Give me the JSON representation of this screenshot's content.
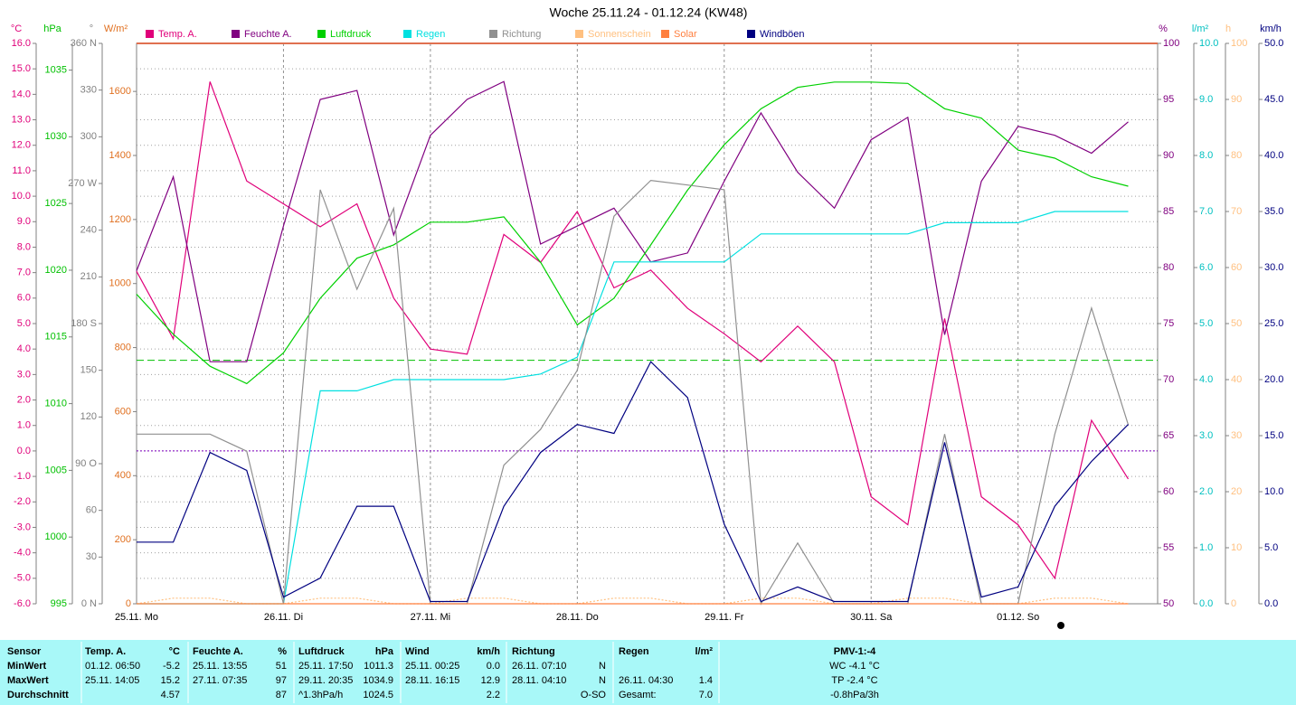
{
  "chart_data": {
    "type": "line",
    "title": "Woche 25.11.24 - 01.12.24 (KW48)",
    "x": [
      0,
      0.25,
      0.5,
      0.75,
      1,
      1.25,
      1.5,
      1.75,
      2,
      2.25,
      2.5,
      2.75,
      3,
      3.25,
      3.5,
      3.75,
      4,
      4.25,
      4.5,
      4.75,
      5,
      5.25,
      5.5,
      5.75,
      6,
      6.25,
      6.5,
      6.75
    ],
    "xlim": [
      0,
      6.95
    ],
    "xticks": [
      {
        "value": 0,
        "label": "25.11. Mo"
      },
      {
        "value": 1,
        "label": "26.11. Di"
      },
      {
        "value": 2,
        "label": "27.11. Mi"
      },
      {
        "value": 3,
        "label": "28.11. Do"
      },
      {
        "value": 4,
        "label": "29.11. Fr"
      },
      {
        "value": 5,
        "label": "30.11. Sa"
      },
      {
        "value": 6,
        "label": "01.12. So"
      }
    ],
    "grid": true,
    "axes": [
      {
        "unit": "°C",
        "color": "#e0007a",
        "lim": [
          -6,
          16
        ],
        "ticks": [
          {
            "value": 16,
            "label": "16.0"
          },
          {
            "value": 15,
            "label": "15.0"
          },
          {
            "value": 14,
            "label": "14.0"
          },
          {
            "value": 13,
            "label": "13.0"
          },
          {
            "value": 12,
            "label": "12.0"
          },
          {
            "value": 11,
            "label": "11.0"
          },
          {
            "value": 10,
            "label": "10.0"
          },
          {
            "value": 9,
            "label": "9.0"
          },
          {
            "value": 8,
            "label": "8.0"
          },
          {
            "value": 7,
            "label": "7.0"
          },
          {
            "value": 6,
            "label": "6.0"
          },
          {
            "value": 5,
            "label": "5.0"
          },
          {
            "value": 4,
            "label": "4.0"
          },
          {
            "value": 3,
            "label": "3.0"
          },
          {
            "value": 2,
            "label": "2.0"
          },
          {
            "value": 1,
            "label": "1.0"
          },
          {
            "value": 0,
            "label": "0.0"
          },
          {
            "value": -1,
            "label": "-1.0"
          },
          {
            "value": -2,
            "label": "-2.0"
          },
          {
            "value": -3,
            "label": "-3.0"
          },
          {
            "value": -4,
            "label": "-4.0"
          },
          {
            "value": -5,
            "label": "-5.0"
          },
          {
            "value": -6,
            "label": "-6.0"
          }
        ]
      },
      {
        "unit": "hPa",
        "color": "#00c000",
        "lim": [
          995,
          1037
        ],
        "ticks": [
          995,
          1000,
          1005,
          1010,
          1015,
          1020,
          1025,
          1030,
          1035
        ]
      },
      {
        "unit": "°",
        "color": "#808080",
        "lim": [
          0,
          360
        ],
        "ticks": [
          {
            "value": 0,
            "label": "0 N"
          },
          30,
          60,
          {
            "value": 90,
            "label": "90 O"
          },
          120,
          150,
          {
            "value": 180,
            "label": "180 S"
          },
          210,
          240,
          {
            "value": 270,
            "label": "270 W"
          },
          300,
          330,
          {
            "value": 360,
            "label": "360 N"
          }
        ]
      },
      {
        "unit": "W/m²",
        "color": "#e07020",
        "lim": [
          0,
          1750
        ],
        "ticks": [
          0,
          200,
          400,
          600,
          800,
          1000,
          1200,
          1400,
          1600
        ]
      },
      {
        "unit": "%",
        "color": "#800080",
        "lim": [
          50,
          100
        ],
        "ticks": [
          50,
          55,
          60,
          65,
          70,
          75,
          80,
          85,
          90,
          95,
          100
        ]
      },
      {
        "unit": "l/m²",
        "color": "#00c0c0",
        "lim": [
          0,
          10
        ],
        "ticks": [
          {
            "value": 0,
            "label": "0.0"
          },
          {
            "value": 1,
            "label": "1.0"
          },
          {
            "value": 2,
            "label": "2.0"
          },
          {
            "value": 3,
            "label": "3.0"
          },
          {
            "value": 4,
            "label": "4.0"
          },
          {
            "value": 5,
            "label": "5.0"
          },
          {
            "value": 6,
            "label": "6.0"
          },
          {
            "value": 7,
            "label": "7.0"
          },
          {
            "value": 8,
            "label": "8.0"
          },
          {
            "value": 9,
            "label": "9.0"
          },
          {
            "value": 10,
            "label": "10.0"
          }
        ]
      },
      {
        "unit": "h",
        "color": "#ffc080",
        "lim": [
          0,
          100
        ],
        "ticks": [
          0,
          10,
          20,
          30,
          40,
          50,
          60,
          70,
          80,
          90,
          100
        ]
      },
      {
        "unit": "km/h",
        "color": "#000080",
        "lim": [
          0,
          50
        ],
        "ticks": [
          {
            "value": 0,
            "label": "0.0"
          },
          {
            "value": 5,
            "label": "5.0"
          },
          {
            "value": 10,
            "label": "10.0"
          },
          {
            "value": 15,
            "label": "15.0"
          },
          {
            "value": 20,
            "label": "20.0"
          },
          {
            "value": 25,
            "label": "25.0"
          },
          {
            "value": 30,
            "label": "30.0"
          },
          {
            "value": 35,
            "label": "35.0"
          },
          {
            "value": 40,
            "label": "40.0"
          },
          {
            "value": 45,
            "label": "45.0"
          },
          {
            "value": 50,
            "label": "50.0"
          }
        ]
      }
    ],
    "hlines": [
      {
        "axis": 1,
        "value": 1013.25,
        "color": "#00c000"
      },
      {
        "axis": 0,
        "value": 0,
        "color": "#8000c0"
      }
    ],
    "series": [
      {
        "name": "Temp. A.",
        "color": "#e0007a",
        "axis": 0,
        "values": [
          7.05,
          4.4,
          14.5,
          10.6,
          9.7,
          8.8,
          9.7,
          6,
          4,
          3.8,
          8.5,
          7.4,
          9.4,
          6.4,
          7.1,
          5.6,
          4.6,
          3.5,
          4.9,
          3.5,
          -1.8,
          -2.9,
          5.2,
          -1.8,
          -2.9,
          -5,
          1.2,
          -1.1
        ]
      },
      {
        "name": "Feuchte A.",
        "color": "#800080",
        "axis": 4,
        "values": [
          79.7,
          88.1,
          71.6,
          71.6,
          83.7,
          95,
          95.8,
          82.9,
          91.8,
          95,
          96.6,
          82.1,
          83.7,
          85.3,
          80.5,
          81.3,
          87.7,
          93.8,
          88.5,
          85.3,
          91.4,
          93.4,
          74,
          87.7,
          92.6,
          91.8,
          90.2,
          93
        ]
      },
      {
        "name": "Luftdruck",
        "color": "#00d000",
        "axis": 1,
        "values": [
          1018.2,
          1015.2,
          1012.8,
          1011.5,
          1013.8,
          1017.9,
          1020.9,
          1021.9,
          1023.6,
          1023.6,
          1024,
          1020.6,
          1015.9,
          1017.9,
          1021.9,
          1026,
          1029.4,
          1032.1,
          1033.7,
          1034.1,
          1034.1,
          1034,
          1032.1,
          1031.4,
          1029,
          1028.4,
          1027,
          1026.3
        ]
      },
      {
        "name": "Regen",
        "color": "#00e0e0",
        "axis": 5,
        "values": [
          0,
          0,
          0,
          0,
          0,
          3.8,
          3.8,
          4,
          4,
          4,
          4,
          4.1,
          4.4,
          6.1,
          6.1,
          6.1,
          6.1,
          6.6,
          6.6,
          6.6,
          6.6,
          6.6,
          6.8,
          6.8,
          6.8,
          7,
          7,
          7
        ]
      },
      {
        "name": "Richtung",
        "color": "#909090",
        "axis": 2,
        "values": [
          109,
          109,
          109,
          98,
          0,
          266,
          202,
          254,
          0,
          0,
          89,
          112,
          150,
          249,
          272,
          269,
          266,
          0,
          39,
          0,
          0,
          0,
          109,
          0,
          0,
          109,
          190,
          115
        ]
      },
      {
        "name": "Sonnenschein",
        "color": "#ffc080",
        "axis": 6,
        "values": [
          0,
          1,
          1,
          0,
          0,
          1,
          1,
          0,
          0,
          1,
          1,
          0,
          0,
          1,
          1,
          0,
          0,
          1,
          1,
          0,
          0,
          1,
          1,
          0,
          0,
          1,
          1,
          0
        ]
      },
      {
        "name": "Solar",
        "color": "#ff8040",
        "axis": 3,
        "values": [
          0,
          0,
          0,
          0,
          0,
          0,
          0,
          0,
          0,
          0,
          0,
          0,
          0,
          0,
          0,
          0,
          0,
          0,
          0,
          0,
          0,
          0,
          0,
          0,
          0,
          0,
          0,
          0
        ]
      },
      {
        "name": "Windböen",
        "color": "#000080",
        "axis": 7,
        "values": [
          5.5,
          5.5,
          13.5,
          11.9,
          0.6,
          2.3,
          8.7,
          8.7,
          0.2,
          0.2,
          8.7,
          13.5,
          16,
          15.2,
          21.6,
          18.4,
          7.1,
          0.2,
          1.5,
          0.2,
          0.2,
          0.2,
          14.4,
          0.6,
          1.5,
          8.7,
          12.7,
          16
        ]
      }
    ]
  },
  "table": {
    "rows": [
      {
        "sensor": "Sensor",
        "temp_time": "Temp. A.",
        "temp_val": "°C",
        "hum_time": "Feuchte A.",
        "hum_val": "%",
        "pres_time": "Luftdruck",
        "pres_val": "hPa",
        "wind_time": "Wind",
        "wind_val": "km/h",
        "dir_time": "Richtung",
        "rain_time": "Regen",
        "rain_val": "l/m²",
        "pmv": "PMV-1:-4"
      },
      {
        "sensor": "MinWert",
        "temp_time": "01.12.  06:50",
        "temp_val": "-5.2",
        "hum_time": "25.11.  13:55",
        "hum_val": "51",
        "pres_time": "25.11.  17:50",
        "pres_val": "1011.3",
        "wind_time": "25.11.  00:25",
        "wind_val": "0.0",
        "dir_time": "26.11.  07:10",
        "dir_val": "N",
        "pmv": "WC -4.1 °C"
      },
      {
        "sensor": "MaxWert",
        "temp_time": "25.11.  14:05",
        "temp_val": "15.2",
        "hum_time": "27.11.  07:35",
        "hum_val": "97",
        "pres_time": "29.11.  20:35",
        "pres_val": "1034.9",
        "wind_time": "28.11.  16:15",
        "wind_val": "12.9",
        "dir_time": "28.11.  04:10",
        "dir_val": "N",
        "rain_time": "26.11.  04:30",
        "rain_val": "1.4",
        "pmv": "TP -2.4 °C"
      },
      {
        "sensor": "Durchschnitt",
        "temp_val": "4.57",
        "hum_val": "87",
        "pres_time": "^1.3hPa/h",
        "pres_val": "1024.5",
        "wind_val": "2.2",
        "dir_val": "O-SO",
        "rain_time": "Gesamt:",
        "rain_val": "7.0",
        "pmv": "-0.8hPa/3h"
      }
    ]
  }
}
